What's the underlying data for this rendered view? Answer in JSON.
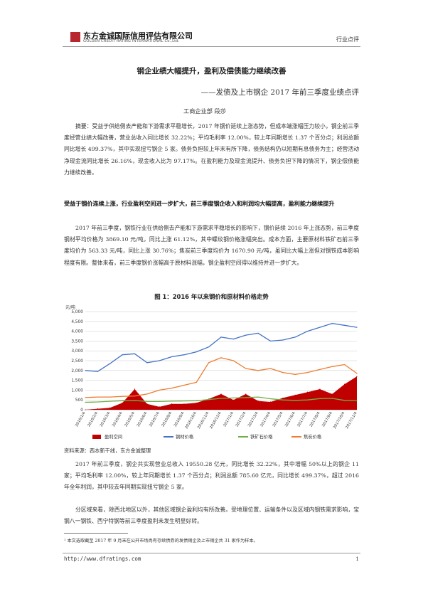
{
  "header": {
    "logo_cn": "东方金诚国际信用评估有限公司",
    "logo_en": "GOLDEN CREDIT RATING INTERNATIONAL Co.,Ltd.",
    "category": "行业点评"
  },
  "title": "钢企业绩大幅提升，盈利及偿债能力继续改善",
  "subtitle": "——发债及上市钢企 2017 年前三季度业绩点评",
  "author": "工商企业部  段莎",
  "abstract": "摘要：受益于供给侧去产能和下游需求平稳增长，2017 年钢价延续上涨态势，但成本端涨幅压力较小，钢企前三季度经营业绩大幅改善，营业总收入同比增长 32.22%；平均毛利率 12.00%，较上年同期增长 1.37 个百分点；利润总额同比增长 499.37%，其中实现扭亏钢企 5 家。债务负担较上年末有所下降，债务结构仍以短期有息债务为主；经营活动净现金流同比增长 26.16%，现金收入比为 97.17%。在盈利能力及现金流提升、债务负担下降的情况下，钢企偿债能力继续改善。",
  "section_heading": "受益于钢价连续上涨，行业盈利空间进一步扩大，前三季度钢企收入和利润均大幅提高，盈利能力继续提升",
  "para1": "2017 年前三季度，钢铁行业在供给侧去产能和下游需求平稳增长的影响下，钢价延续 2016 年上涨态势，前三季度钢材平均价格为 3869.10 元/吨，同比上涨 61.12%，其中螺纹钢价格涨幅突出。成本方面，主要原材料铁矿石前三季度均价为 563.33 元/吨，同比上涨 30.76%；焦炭前三季度均价为 1670.90 元/吨，虽同比大幅上涨但对钢铁成本影响程度有限。整体来看，前三季度钢价涨幅高于原材料涨幅，钢企盈利空间得以维持并进一步扩大。",
  "figure_title": "图 1：2016 年以来钢价和原材料价格走势",
  "source": "资料来源：西本新干线，东方金诚整理",
  "para2": "2017 年前三季度，钢企共实现营业总收入 19550.28 亿元，同比增长 32.22%，其中增幅 50%以上的钢企 11 家；平均毛利率 12.00%，较上年同期增长 1.37 个百分点；利润总额 785.60 亿元，同比增长 499.37%，超过 2016 年全年利润，其中较去年同期实现扭亏钢企 5 家。",
  "para3": "分区域来看，除西北地区以外，其他区域钢企盈利均有所改善。受地理位置、运输条件以及区域内钢铁需求影响，宝钢八一钢铁、西宁特钢等前三季度盈利未发生明显好转。",
  "footnote": "¹ 本文选取截至 2017 年 9 月末在公开市场尚有存续债券的发债钢企及上市钢企共 31 家作为样本。",
  "footer": {
    "url": "http://www.dfratings.com",
    "page": "1"
  },
  "chart_data": {
    "type": "line",
    "yunit": "元/吨",
    "ylim": [
      0,
      5000
    ],
    "yticks": [
      "0",
      "500",
      "1,000",
      "1,500",
      "2,000",
      "2,500",
      "3,000",
      "3,500",
      "4,000",
      "4,500",
      "5,000"
    ],
    "xticks": [
      "2016/1/4",
      "2016/2/4",
      "2016/3/4",
      "2016/4/4",
      "2016/5/4",
      "2016/6/4",
      "2016/7/4",
      "2016/8/4",
      "2016/9/4",
      "2016/10/4",
      "2016/11/4",
      "2016/12/4",
      "2017/1/4",
      "2017/2/4",
      "2017/3/4",
      "2017/4/4",
      "2017/5/4",
      "2017/6/4",
      "2017/7/4",
      "2017/8/4",
      "2017/9/4",
      "2017/10/4",
      "2017/11/4"
    ],
    "grid": true,
    "legend_position": "bottom",
    "series": [
      {
        "name": "盈利空间",
        "kind": "area",
        "color": "#c00000",
        "values": [
          0,
          50,
          100,
          350,
          1050,
          300,
          150,
          300,
          300,
          350,
          550,
          800,
          500,
          800,
          450,
          400,
          600,
          750,
          900,
          1050,
          800,
          1300,
          1700
        ]
      },
      {
        "name": "钢材价格",
        "kind": "line",
        "color": "#4472c4",
        "values": [
          2000,
          1950,
          2350,
          2800,
          2850,
          2400,
          2500,
          2700,
          2800,
          2950,
          3200,
          3700,
          3600,
          3800,
          3900,
          3500,
          3550,
          3700,
          4000,
          4200,
          4400,
          4300,
          4200
        ]
      },
      {
        "name": "铁矿石价格",
        "kind": "line",
        "color": "#70ad47",
        "values": [
          380,
          400,
          430,
          460,
          480,
          420,
          420,
          440,
          450,
          460,
          520,
          580,
          600,
          620,
          650,
          560,
          500,
          480,
          500,
          570,
          580,
          480,
          470
        ]
      },
      {
        "name": "焦炭价格",
        "kind": "line",
        "color": "#ed7d31",
        "values": [
          620,
          650,
          650,
          680,
          700,
          800,
          1000,
          1100,
          1250,
          1400,
          2400,
          2650,
          2500,
          2100,
          2000,
          2100,
          1900,
          1800,
          1900,
          2050,
          2200,
          2300,
          1850
        ]
      }
    ]
  }
}
